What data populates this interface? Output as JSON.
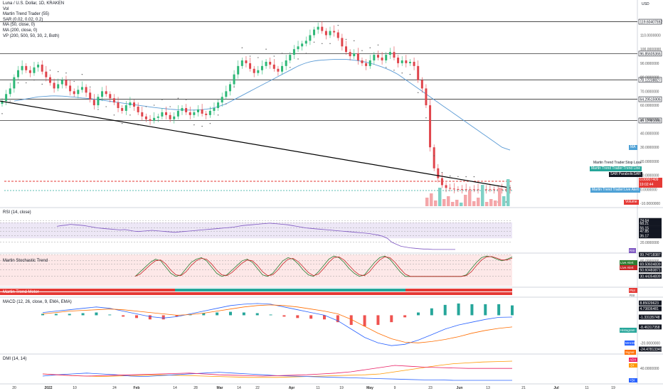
{
  "colors": {
    "up": "#2eb877",
    "down": "#e0454c",
    "ma": "#5b9bd5",
    "macd": "#2962ff",
    "signal": "#ff6d00",
    "adx": "#e91e63",
    "rsi": "#7e57c2",
    "trendline": "#000000",
    "stop": "#e53935",
    "entry": "#26a69a"
  },
  "legend": [
    "Luna / U.S. Dollar, 1D, KRAKEN",
    "Vol",
    "Martin Trend Trader (55)",
    "SAR (0.02, 0.02, 0.2)",
    "MA (50, close, 0)",
    "MA (200, close, 0)",
    "VP (200, 500, 50, 30, 2, Both)"
  ],
  "currency": "USD",
  "panes": {
    "rsi": "RSI (14, close)",
    "stoch": "Martin Stochastic Trend",
    "meter": "Martin Trend Meter",
    "macd": "MACD (12, 26, close, 9, EMA, EMA)",
    "dmi": "DMI (14, 14)"
  },
  "main_axis_ticks": [
    "110.0000000",
    "100.0000000",
    "90.0000000",
    "80.0000000",
    "70.0000000",
    "60.0000000",
    "50.0000000",
    "40.0000000",
    "30.0000000",
    "20.0000000",
    "10.0000000",
    "0.0000000",
    "-10.0000000"
  ],
  "main_levels": [
    {
      "label": "119.60407592",
      "value": 119.6
    },
    {
      "label": "96.85605366",
      "value": 96.86
    },
    {
      "label": "78.12238827",
      "value": 78.12
    },
    {
      "label": "64.29515906",
      "value": 64.3
    },
    {
      "label": "49.12981088",
      "value": 49.13
    }
  ],
  "current_price": "0.00007409",
  "countdown": "19:02:44",
  "main_tags": [
    {
      "label": "Martin Trend Trader:Stop Loss",
      "kind": "plain"
    },
    {
      "label": "Martin Trend Trader:Trend Line",
      "kind": "teal"
    },
    {
      "label": "SAR:ParabolicSAR",
      "kind": "dark"
    },
    {
      "label": "Martin Trend Trader:Live Alert",
      "kind": "blue"
    },
    {
      "label": "MA",
      "kind": "ma"
    },
    {
      "label": "Volume",
      "kind": "red"
    }
  ],
  "rsi_labels": [
    "74.64",
    "68.21",
    "56.15",
    "47.85",
    "36.17",
    "20.0000000",
    "RSI"
  ],
  "stoch_labels": [
    "99.74718387",
    "80.0000000",
    "69.50604839",
    "50.60483871",
    "30.44354839",
    "Live Alert",
    "Live Alert",
    "Plot",
    "RSI"
  ],
  "macd_labels": [
    "8.85029623",
    "4.73836481",
    "Histogram",
    "-1.33135748",
    "MACD",
    "-8.46317358",
    "Signal",
    "-20.0000000",
    "-24.47813340"
  ],
  "dmi_labels": [
    "ADX",
    "-DI",
    "40.0000000",
    "+DI"
  ],
  "x_axis_ticks": [
    "20",
    "2022",
    "10",
    "24",
    "Feb",
    "14",
    "28",
    "Mar",
    "14",
    "22",
    "Apr",
    "11",
    "19",
    "May",
    "9",
    "23",
    "Jun",
    "13",
    "21",
    "Jul",
    "11",
    "19"
  ],
  "chart_data": {
    "type": "candlestick",
    "title": "Luna / U.S. Dollar, 1D, KRAKEN",
    "ylabel": "USD",
    "ylim": [
      -10,
      120
    ],
    "closes": [
      63,
      68,
      72,
      80,
      85,
      88,
      85,
      83,
      87,
      89,
      84,
      80,
      76,
      72,
      75,
      78,
      74,
      70,
      68,
      71,
      73,
      69,
      64,
      60,
      66,
      70,
      68,
      65,
      62,
      58,
      56,
      60,
      62,
      59,
      55,
      52,
      50,
      49,
      51,
      52,
      55,
      53,
      50,
      52,
      56,
      58,
      55,
      53,
      55,
      57,
      54,
      53,
      56,
      58,
      62,
      66,
      70,
      75,
      82,
      88,
      92,
      90,
      86,
      83,
      85,
      88,
      91,
      89,
      86,
      84,
      88,
      92,
      96,
      100,
      102,
      104,
      106,
      110,
      114,
      116,
      113,
      110,
      113,
      112,
      108,
      102,
      98,
      95,
      97,
      92,
      90,
      88,
      92,
      96,
      94,
      92,
      96,
      98,
      94,
      90,
      92,
      90,
      91,
      88,
      78,
      72,
      60,
      30,
      15,
      8,
      3,
      1,
      0.5,
      0.2,
      0.1,
      0.05,
      0.01,
      0.005,
      0.002,
      0.001,
      0.0008,
      0.0006,
      0.0004,
      0.0003,
      0.0002,
      0.0001,
      8e-05,
      7.409e-05
    ],
    "ma50": [
      63,
      63.5,
      64,
      64.5,
      65,
      65.5,
      66,
      66.2,
      66.4,
      66.6,
      66.7,
      66.6,
      66.5,
      66.3,
      66.0,
      65.8,
      65.5,
      65.2,
      65.0,
      64.7,
      64.4,
      64.0,
      63.6,
      63.2,
      62.8,
      62.4,
      62.0,
      61.6,
      61.2,
      60.8,
      60.4,
      60.0,
      59.6,
      59.2,
      58.8,
      58.4,
      58.1,
      57.8,
      57.5,
      57.2,
      57.0,
      56.8,
      56.7,
      56.6,
      56.6,
      56.6,
      56.7,
      56.9,
      57.2,
      57.6,
      58.2,
      59,
      60,
      61,
      62.5,
      64,
      65.5,
      67,
      68.5,
      70,
      71.5,
      73,
      74.5,
      76,
      77.5,
      79,
      80.5,
      82,
      83.5,
      85,
      86.5,
      88,
      89.2,
      90.2,
      91.0,
      91.6,
      92,
      92.2,
      92.4,
      92.6,
      92.7,
      92.8,
      92.8,
      92.7,
      92.5,
      92.2,
      91.8,
      91.3,
      90.7,
      90.0,
      89.2,
      88.3,
      87.3,
      86.2,
      85,
      83.5,
      82,
      80,
      78,
      76,
      74,
      72,
      70,
      68,
      66,
      64,
      62,
      60,
      58,
      56,
      54,
      52,
      50,
      48,
      46,
      44,
      42,
      40,
      38,
      36,
      34,
      32,
      30,
      29,
      28
    ],
    "trendline": {
      "x": [
        0,
        0.77
      ],
      "y": [
        63,
        1
      ]
    },
    "volume_bars": [
      12,
      18,
      8,
      26,
      10,
      14,
      6,
      9,
      5,
      16,
      22,
      7,
      12,
      30,
      6,
      10,
      8,
      26,
      14,
      38
    ],
    "rsi": {
      "values": [
        60,
        62,
        63,
        65,
        64,
        63,
        62,
        60,
        58,
        56,
        55,
        54,
        53,
        52,
        51,
        52,
        50,
        48,
        47,
        48,
        49,
        50,
        49,
        48,
        47,
        46,
        45,
        46,
        47,
        48,
        49,
        50,
        51,
        52,
        53,
        54,
        55,
        56,
        57,
        58,
        60,
        62,
        63,
        64,
        65,
        66,
        67,
        68,
        67,
        66,
        65,
        64,
        62,
        60,
        58,
        56,
        55,
        54,
        53,
        52,
        51,
        50,
        49,
        48,
        47,
        46,
        45,
        44,
        43,
        42,
        40,
        38,
        35,
        30,
        20,
        15,
        10,
        8,
        6,
        5,
        4,
        3,
        3,
        2,
        2,
        2,
        2,
        2,
        2
      ],
      "levels": [
        74.64,
        68.21,
        56.15,
        47.85,
        36.17,
        20
      ]
    },
    "stochastic": {
      "k": [
        30,
        45,
        60,
        75,
        85,
        80,
        60,
        40,
        30,
        35,
        55,
        75,
        85,
        90,
        80,
        60,
        40,
        30,
        35,
        50,
        65,
        80,
        85,
        75,
        55,
        35,
        30,
        40,
        60,
        80,
        90,
        85,
        70,
        50,
        35,
        30,
        45,
        65,
        85,
        95,
        90,
        75,
        55,
        40,
        30,
        35,
        55,
        75,
        90,
        95,
        85,
        65,
        45,
        30,
        30,
        30,
        30,
        30,
        30,
        30,
        30,
        30,
        30,
        30,
        30,
        35,
        55,
        75,
        90,
        95,
        92,
        85,
        80,
        85,
        92
      ],
      "levels": [
        99.75,
        80,
        69.51,
        50.6,
        30.44
      ]
    },
    "macd": {
      "macd": [
        2,
        3,
        4,
        5,
        6,
        5,
        3,
        1,
        -1,
        -2,
        -1,
        1,
        3,
        5,
        7,
        8,
        8.5,
        8,
        6,
        4,
        2,
        0,
        -4,
        -10,
        -16,
        -20,
        -22,
        -21,
        -18,
        -14,
        -10,
        -7,
        -5,
        -3,
        -1.5,
        -1.33
      ],
      "signal": [
        1,
        2,
        3,
        3.5,
        4,
        4.5,
        4,
        3,
        2,
        1,
        0,
        0.5,
        1.5,
        3,
        4.5,
        6,
        7,
        7.5,
        7,
        6,
        4.5,
        3,
        1,
        -3,
        -8,
        -13,
        -17,
        -19.5,
        -20,
        -19,
        -17.5,
        -15.5,
        -13,
        -11,
        -9.5,
        -8.46
      ],
      "levels": {
        "max": 8.85,
        "mid": 4.74,
        "macd": -1.33,
        "signal": -8.46,
        "min": -24.48
      }
    },
    "dmi": {
      "adx": [
        20,
        18,
        16,
        15,
        14,
        15,
        16,
        17,
        18,
        17,
        16,
        15,
        14,
        13,
        12,
        12,
        12,
        13,
        14,
        15,
        16,
        17,
        18,
        20,
        25,
        30,
        35,
        40,
        44,
        46,
        48,
        49,
        50
      ],
      "plus_di": [
        15,
        18,
        20,
        22,
        20,
        18,
        15,
        14,
        16,
        18,
        20,
        22,
        24,
        22,
        20,
        18,
        16,
        15,
        14,
        13,
        12,
        11,
        10,
        9,
        8,
        7,
        6,
        6,
        5,
        5,
        5,
        5,
        5
      ],
      "minus_di": [
        20,
        18,
        16,
        15,
        16,
        17,
        18,
        19,
        20,
        21,
        22,
        20,
        18,
        17,
        16,
        15,
        16,
        17,
        18,
        20,
        22,
        25,
        30,
        35,
        40,
        38,
        36,
        35,
        34,
        33,
        33,
        33,
        33
      ]
    }
  }
}
